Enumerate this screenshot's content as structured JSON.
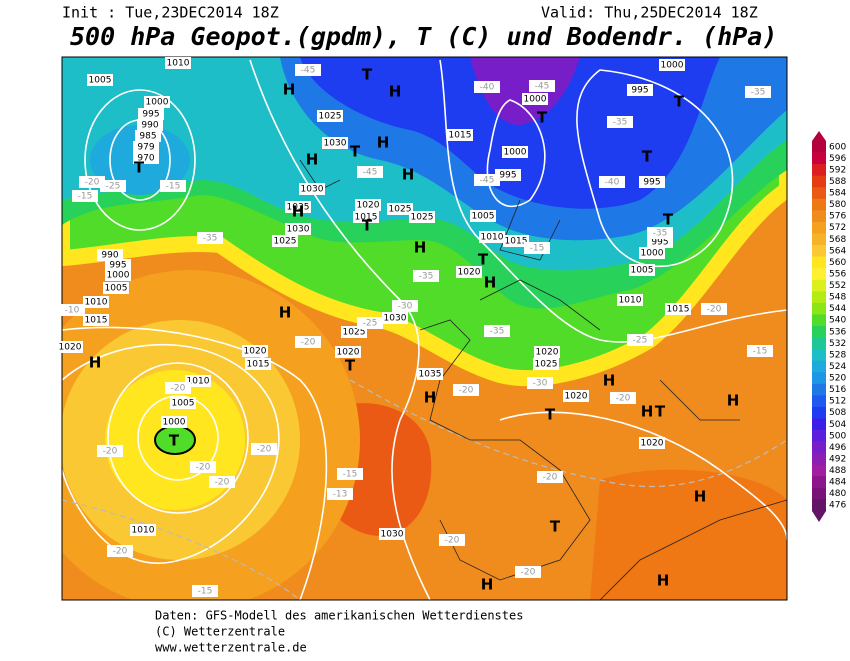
{
  "header": {
    "init": "Init : Tue,23DEC2014 18Z",
    "valid": "Valid: Thu,25DEC2014 18Z",
    "title": "500 hPa Geopot.(gpdm), T (C) und Bodendr. (hPa)"
  },
  "legend": {
    "levels": [
      600,
      596,
      592,
      588,
      584,
      580,
      576,
      572,
      568,
      564,
      560,
      556,
      552,
      548,
      544,
      540,
      536,
      532,
      528,
      524,
      520,
      516,
      512,
      508,
      504,
      500,
      496,
      492,
      488,
      484,
      480,
      476
    ],
    "colors": [
      "#b4003c",
      "#c8003c",
      "#dc1e1e",
      "#e63c14",
      "#eb5a14",
      "#f07814",
      "#f08c1e",
      "#f5a01e",
      "#f5b428",
      "#fac832",
      "#ffe61e",
      "#fff032",
      "#dcf01e",
      "#b4eb14",
      "#8ce614",
      "#50dc28",
      "#28d25a",
      "#1ec896",
      "#1ebec8",
      "#1eaadc",
      "#1e96e6",
      "#1e78e6",
      "#1e5af0",
      "#1e3cf0",
      "#3c1ee6",
      "#5a1edc",
      "#781ec8",
      "#8c1eb4",
      "#a01ea0",
      "#8c148c",
      "#781478",
      "#641464"
    ]
  },
  "map": {
    "isobar_labels": [
      "1005",
      "1010",
      "1000",
      "995",
      "990",
      "985",
      "979",
      "970",
      "1025",
      "1030",
      "1015",
      "1000",
      "995",
      "1000",
      "1000",
      "995",
      "995",
      "995",
      "1000",
      "1030",
      "1035",
      "1030",
      "1025",
      "1020",
      "1015",
      "1025",
      "1025",
      "1005",
      "1010",
      "1015",
      "1020",
      "1005",
      "1010",
      "1015",
      "990",
      "995",
      "1000",
      "1005",
      "1010",
      "1015",
      "1020",
      "1030",
      "1025",
      "1020",
      "1020",
      "1015",
      "1010",
      "1005",
      "1000",
      "1035",
      "1020",
      "1025",
      "1020",
      "1020",
      "1030",
      "1010"
    ],
    "temperature_labels": [
      "-45",
      "-40",
      "-45",
      "-35",
      "-35",
      "-40",
      "-35",
      "-45",
      "-45",
      "-20",
      "-25",
      "-15",
      "-15",
      "-35",
      "-30",
      "-25",
      "-20",
      "-35",
      "-35",
      "-30",
      "-25",
      "-20",
      "-15",
      "-20",
      "-20",
      "-20",
      "-20",
      "-20",
      "-20",
      "-20",
      "-15",
      "-13",
      "-20",
      "-20",
      "-20",
      "-20",
      "-15",
      "-10",
      "-15"
    ],
    "systems": [
      "H",
      "H",
      "H",
      "H",
      "H",
      "H",
      "H",
      "H",
      "H",
      "H",
      "H",
      "H",
      "H",
      "H",
      "H",
      "H",
      "H",
      "T",
      "T",
      "T",
      "T",
      "T",
      "T",
      "T",
      "T",
      "T",
      "T",
      "T",
      "T",
      "T",
      "T"
    ]
  },
  "footer": {
    "lines": [
      "Daten: GFS-Modell des amerikanischen Wetterdienstes",
      "(C) Wetterzentrale",
      "www.wetterzentrale.de"
    ]
  }
}
